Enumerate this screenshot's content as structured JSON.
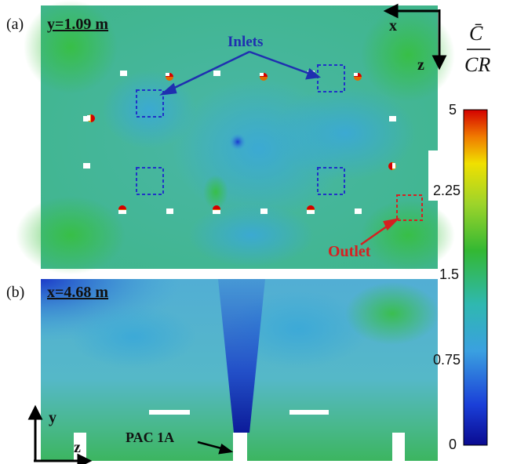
{
  "panels": {
    "a": {
      "label": "(a)",
      "tag": "y=1.09 m"
    },
    "b": {
      "label": "(b)",
      "tag": "x=4.68 m"
    }
  },
  "annotations": {
    "inlets": "Inlets",
    "outlet": "Outlet",
    "pac": "PAC 1A"
  },
  "axes_top": {
    "h": "x",
    "v": "z"
  },
  "axes_bottom": {
    "v": "y",
    "h": "z"
  },
  "colorbar": {
    "title_num": "C̄",
    "title_den": "CR",
    "ticks": [
      "5",
      "2.25",
      "1.5",
      "0.75",
      "0"
    ],
    "colors": [
      "#d40000",
      "#f07a00",
      "#f0e000",
      "#9ed42a",
      "#33b833",
      "#2fb8b0",
      "#3aa0e0",
      "#1a3fd8",
      "#0a0a90"
    ]
  }
}
